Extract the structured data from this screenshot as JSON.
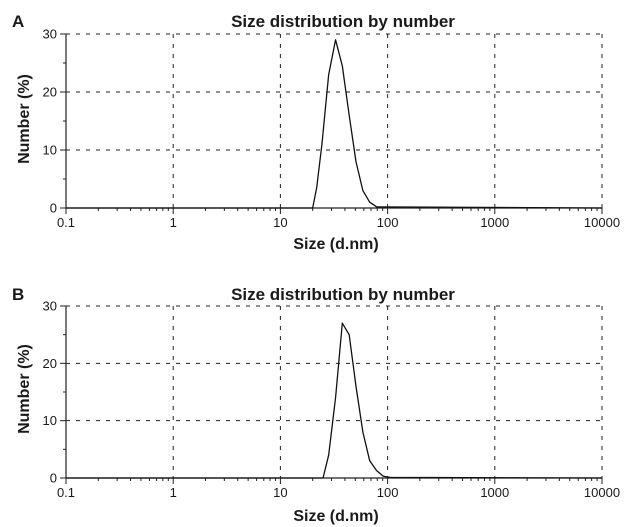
{
  "chart_data": [
    {
      "type": "line",
      "panel_label": "A",
      "title": "Size distribution by number",
      "xlabel": "Size (d.nm)",
      "ylabel": "Number (%)",
      "xscale": "log",
      "xlim": [
        0.1,
        10000
      ],
      "ylim": [
        0,
        30
      ],
      "xticks": [
        0.1,
        1,
        10,
        100,
        1000,
        10000
      ],
      "xtick_labels": [
        "0.1",
        "1",
        "10",
        "100",
        "1000",
        "10000"
      ],
      "yticks": [
        0,
        10,
        20,
        30
      ],
      "ytick_labels": [
        "0",
        "10",
        "20",
        "30"
      ],
      "grid": true,
      "series": [
        {
          "x": [
            0.1,
            20,
            21.8,
            24.4,
            28.2,
            32.7,
            37.8,
            43.8,
            50.7,
            58.8,
            68.1,
            78.8,
            10000
          ],
          "y": [
            0,
            0,
            3.5,
            11.0,
            23.0,
            29.0,
            24.5,
            16.0,
            8.0,
            3.0,
            1.0,
            0.2,
            0
          ]
        }
      ]
    },
    {
      "type": "line",
      "panel_label": "B",
      "title": "Size distribution by number",
      "xlabel": "Size (d.nm)",
      "ylabel": "Number (%)",
      "xscale": "log",
      "xlim": [
        0.1,
        10000
      ],
      "ylim": [
        0,
        30
      ],
      "xticks": [
        0.1,
        1,
        10,
        100,
        1000,
        10000
      ],
      "xtick_labels": [
        "0.1",
        "1",
        "10",
        "100",
        "1000",
        "10000"
      ],
      "yticks": [
        0,
        10,
        20,
        30
      ],
      "ytick_labels": [
        "0",
        "10",
        "20",
        "30"
      ],
      "grid": true,
      "series": [
        {
          "x": [
            0.1,
            25.0,
            28.2,
            32.7,
            37.8,
            43.8,
            50.7,
            58.8,
            68.1,
            78.8,
            91.3,
            105.7,
            10000
          ],
          "y": [
            0,
            0,
            4.0,
            14.0,
            27.0,
            25.0,
            16.0,
            8.0,
            3.0,
            1.3,
            0.3,
            0.1,
            0
          ]
        }
      ]
    }
  ]
}
